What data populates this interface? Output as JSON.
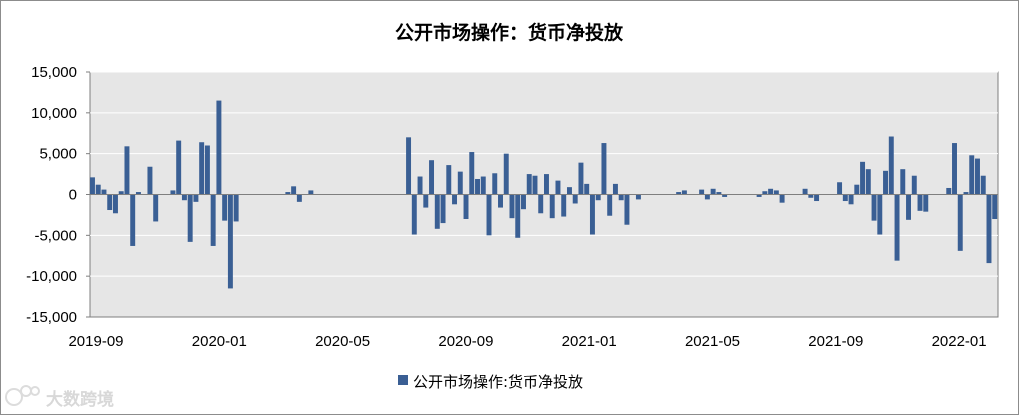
{
  "watermark": "大数跨境",
  "chart_data": {
    "type": "bar",
    "title": "公开市场操作：货币净投放",
    "legend": [
      "公开市场操作:货币净投放"
    ],
    "legend_position": "bottom",
    "color": "#3a5f94",
    "ylim": [
      -15000,
      15000
    ],
    "yticks": [
      "15,000",
      "10,000",
      "5,000",
      "0",
      "-5,000",
      "-10,000",
      "-15,000"
    ],
    "ytick_values": [
      15000,
      10000,
      5000,
      0,
      -5000,
      -10000,
      -15000
    ],
    "xticks": [
      "2019-09",
      "2020-01",
      "2020-05",
      "2020-09",
      "2021-01",
      "2021-05",
      "2021-09",
      "2022-01"
    ],
    "grid": true,
    "values": [
      2100,
      1200,
      600,
      -1900,
      -2300,
      400,
      5900,
      -6300,
      300,
      0,
      3400,
      -3300,
      0,
      0,
      500,
      6600,
      -700,
      -5800,
      -900,
      6400,
      6000,
      -6300,
      11500,
      -3200,
      -11500,
      -3300,
      0,
      0,
      0,
      0,
      0,
      0,
      0,
      0,
      300,
      1000,
      -900,
      0,
      500,
      0,
      0,
      0,
      0,
      0,
      0,
      0,
      0,
      0,
      0,
      0,
      0,
      0,
      0,
      0,
      0,
      7000,
      -4900,
      2200,
      -1600,
      4200,
      -4200,
      -3500,
      3600,
      -1200,
      2800,
      -3000,
      5200,
      1900,
      2200,
      -5000,
      2600,
      -1600,
      5000,
      -2900,
      -5300,
      -1800,
      2500,
      2300,
      -2300,
      2500,
      -2900,
      1700,
      -2700,
      900,
      -1100,
      3900,
      1300,
      -4900,
      -700,
      6300,
      -2600,
      1300,
      -700,
      -3700,
      0,
      -600,
      0,
      0,
      0,
      0,
      0,
      0,
      300,
      500,
      0,
      0,
      600,
      -600,
      700,
      300,
      -300,
      0,
      0,
      0,
      0,
      0,
      -300,
      400,
      700,
      500,
      -1000,
      0,
      0,
      0,
      700,
      -400,
      -800,
      0,
      0,
      0,
      1500,
      -800,
      -1200,
      1200,
      4000,
      3100,
      -3200,
      -4900,
      2900,
      7100,
      -8100,
      3100,
      -3100,
      2300,
      -2000,
      -2100,
      0,
      0,
      0,
      800,
      6300,
      -6900,
      300,
      4800,
      4400,
      2300,
      -8400,
      -3000
    ]
  }
}
